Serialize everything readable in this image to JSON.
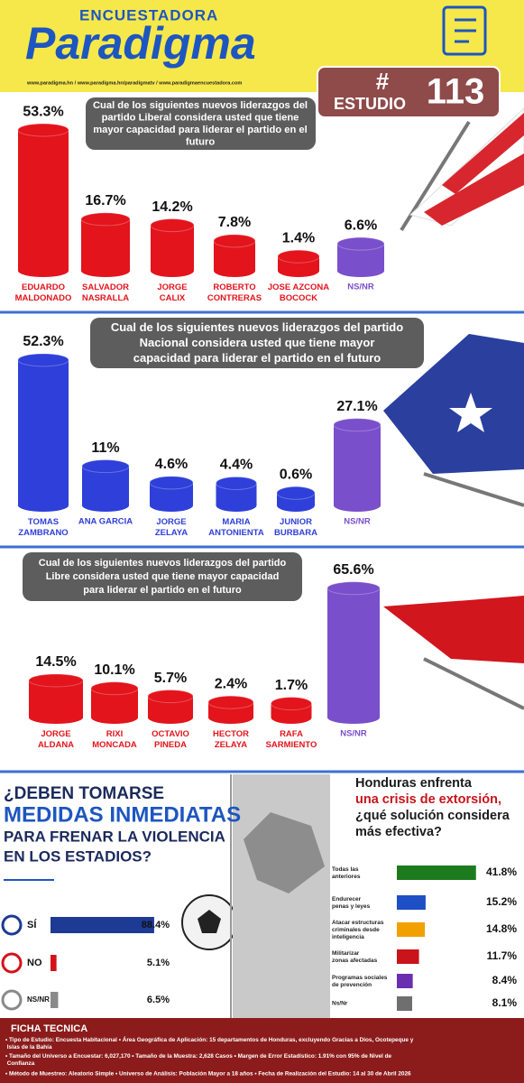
{
  "header": {
    "brand_top": "ENCUESTADORA",
    "brand": "Paradigma",
    "links": "www.paradigma.hn  /  www.paradigma.hn/paradigmatv  /  www.paradigmaencuestadora.com",
    "hash": "#",
    "study_label": "ESTUDIO",
    "study_number": "113"
  },
  "chart_data": [
    {
      "type": "bar",
      "title": "Cual de los  siguientes nuevos liderazgos del\npartido Liberal considera usted que  tiene\nmayor capacidad para liderar el partido en el\nfuturo",
      "categories": [
        "EDUARDO\nMALDONADO",
        "SALVADOR\nNASRALLA",
        "JORGE\nCALIX",
        "ROBERTO\nCONTRERAS",
        "JOSE AZCONA\nBOCOCK",
        "NS/NR"
      ],
      "values": [
        53.3,
        16.7,
        14.2,
        7.8,
        1.4,
        6.6
      ],
      "value_labels": [
        "53.3%",
        "16.7%",
        "14.2%",
        "7.8%",
        "1.4%",
        "6.6%"
      ],
      "colors": [
        "#e3141c",
        "#e3141c",
        "#e3141c",
        "#e3141c",
        "#e3141c",
        "#7a4fcb"
      ]
    },
    {
      "type": "bar",
      "title": "Cual de los  siguientes nuevos liderazgos del partido\nNacional considera usted que  tiene mayor\ncapacidad para liderar el partido en el futuro",
      "categories": [
        "TOMAS\nZAMBRANO",
        "ANA GARCIA",
        "JORGE\nZELAYA",
        "MARIA\nANTONIENTA",
        "JUNIOR\nBURBARA",
        "NS/NR"
      ],
      "values": [
        52.3,
        11,
        4.6,
        4.4,
        0.6,
        27.1
      ],
      "value_labels": [
        "52.3%",
        "11%",
        "4.6%",
        "4.4%",
        "0.6%",
        "27.1%"
      ],
      "colors": [
        "#2f3fd9",
        "#2f3fd9",
        "#2f3fd9",
        "#2f3fd9",
        "#2f3fd9",
        "#7a4fcb"
      ]
    },
    {
      "type": "bar",
      "title": "Cual de los  siguientes nuevos liderazgos del partido\nLibre considera usted que  tiene mayor capacidad\npara liderar el partido en el futuro",
      "categories": [
        "JORGE\nALDANA",
        "RIXI\nMONCADA",
        "OCTAVIO\nPINEDA",
        "HECTOR\nZELAYA",
        "RAFA\nSARMIENTO",
        "NS/NR"
      ],
      "values": [
        14.5,
        10.1,
        5.7,
        2.4,
        1.7,
        65.6
      ],
      "value_labels": [
        "14.5%",
        "10.1%",
        "5.7%",
        "2.4%",
        "1.7%",
        "65.6%"
      ],
      "colors": [
        "#e3141c",
        "#e3141c",
        "#e3141c",
        "#e3141c",
        "#e3141c",
        "#7a4fcb"
      ]
    },
    {
      "type": "bar",
      "orientation": "horizontal",
      "title": [
        "¿DEBEN TOMARSE",
        "MEDIDAS INMEDIATAS",
        "PARA FRENAR LA VIOLENCIA",
        "EN LOS ESTADIOS?"
      ],
      "categories": [
        "SÍ",
        "NO",
        "NS/NR"
      ],
      "values": [
        88.4,
        5.1,
        6.5
      ],
      "value_labels": [
        "88.4%",
        "5.1%",
        "6.5%"
      ],
      "colors": [
        "#1d3a94",
        "#d4121a",
        "#8a8a8a"
      ]
    },
    {
      "type": "bar",
      "orientation": "horizontal",
      "title": [
        "Honduras enfrenta",
        "una crisis de extorsión,",
        "¿qué solución considera",
        "más efectiva?"
      ],
      "categories": [
        "Todas las\nanteriores",
        "Endurecer\npenas y leyes",
        "Atacar estructuras\ncriminales desde\ninteligencia",
        "Militarizar\nzonas afectadas",
        "Programas sociales\nde prevención",
        "Ns/Nr"
      ],
      "values": [
        41.8,
        15.2,
        14.8,
        11.7,
        8.4,
        8.1
      ],
      "value_labels": [
        "41.8%",
        "15.2%",
        "14.8%",
        "11.7%",
        "8.4%",
        "8.1%"
      ],
      "colors": [
        "#1e7a1e",
        "#1f4fc4",
        "#f2a000",
        "#c8141a",
        "#6a2fb0",
        "#6f6f6f"
      ]
    }
  ],
  "footer": {
    "title": "FICHA TECNICA",
    "lines": [
      "• Tipo de Estudio: Encuesta Habitacional • Área Geográfica de Aplicación: 15 departamentos de Honduras, excluyendo Gracias a Dios, Ocotepeque y\n  Islas de la Bahía",
      "• Tamaño del Universo a Encuestar: 6,027,170 • Tamaño de la Muestra: 2,628 Casos • Margen de Error Estadístico: 1.91% con 95% de Nivel de\n  Confianza",
      "• Método de Muestreo: Aleatorio Simple • Universo de Análisis: Población Mayor a 18 años • Fecha de Realización del Estudio: 14 al 30 de Abril 2026"
    ]
  }
}
